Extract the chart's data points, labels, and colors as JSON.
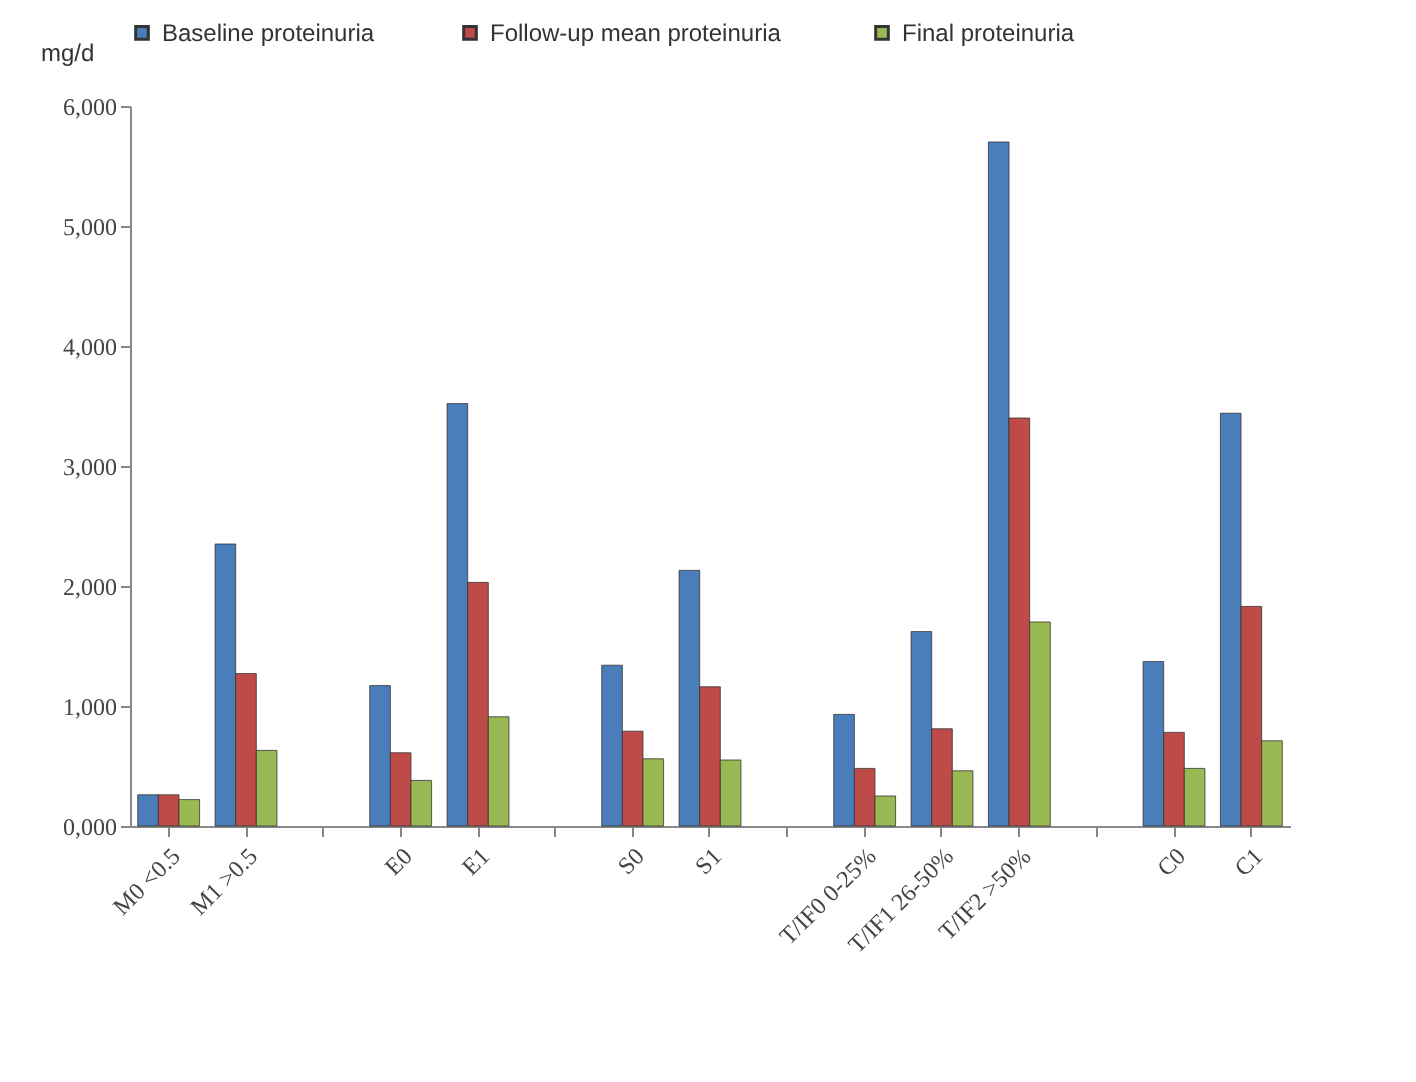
{
  "chart_data": {
    "type": "bar",
    "ylabel": "mg/d",
    "categories": [
      "M0 <0.5",
      "M1 >0.5",
      null,
      "E0",
      "E1",
      null,
      "S0",
      "S1",
      null,
      "T/IF0 0-25%",
      "T/IF1 26-50%",
      "T/IF2 >50%",
      null,
      "C0",
      "C1"
    ],
    "series": [
      {
        "name": "Baseline proteinuria",
        "color": "#4a7ebb",
        "values": [
          260,
          2350,
          null,
          1170,
          3520,
          null,
          1340,
          2130,
          null,
          930,
          1620,
          5700,
          null,
          1370,
          3440
        ]
      },
      {
        "name": "Follow-up  mean proteinuria",
        "color": "#be4b48",
        "values": [
          260,
          1270,
          null,
          610,
          2030,
          null,
          790,
          1160,
          null,
          480,
          810,
          3400,
          null,
          780,
          1830
        ]
      },
      {
        "name": "Final proteinuria",
        "color": "#98b954",
        "values": [
          220,
          630,
          null,
          380,
          910,
          null,
          560,
          550,
          null,
          250,
          460,
          1700,
          null,
          480,
          710
        ]
      }
    ],
    "ylim": [
      0,
      6000
    ],
    "yticks": [
      {
        "value": 0,
        "label": "0,000"
      },
      {
        "value": 1000,
        "label": "1,000"
      },
      {
        "value": 2000,
        "label": "2,000"
      },
      {
        "value": 3000,
        "label": "3,000"
      },
      {
        "value": 4000,
        "label": "4,000"
      },
      {
        "value": 5000,
        "label": "5,000"
      },
      {
        "value": 6000,
        "label": "6,000"
      }
    ],
    "grid": false,
    "legend": "top"
  }
}
